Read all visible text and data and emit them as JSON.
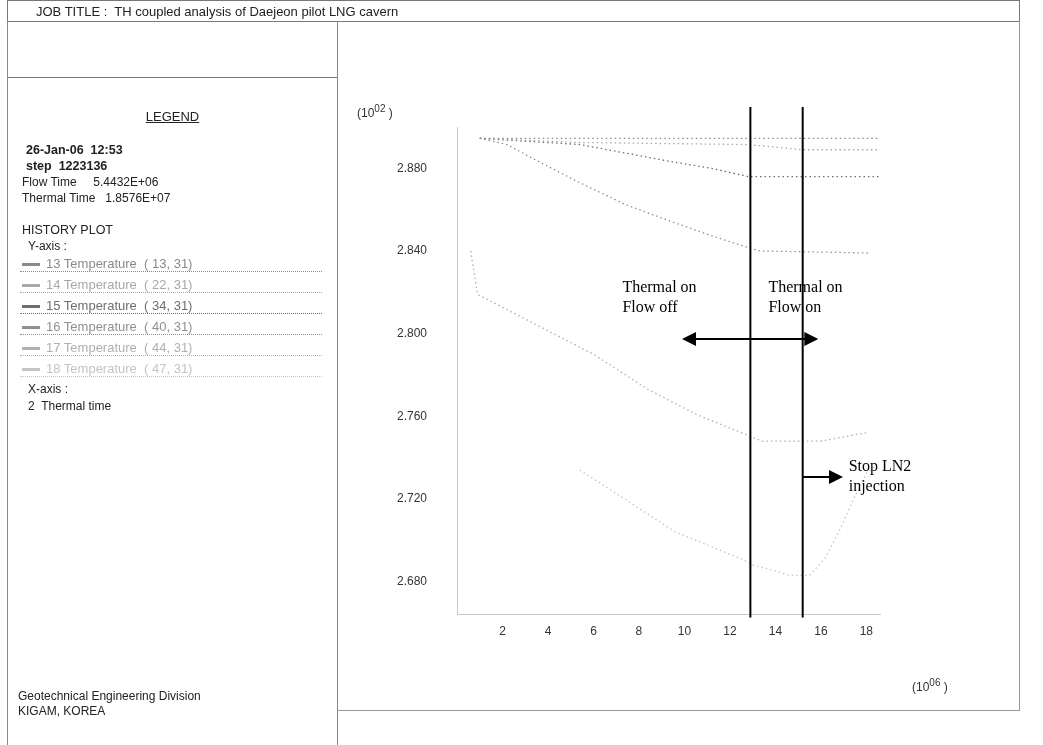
{
  "chart_data": {
    "type": "line",
    "title": "JOB TITLE :  TH coupled analysis of Daejeon pilot LNG cavern",
    "subtitle": "HISTORY PLOT",
    "legend_title": "LEGEND",
    "ylabel": "(10$^{02}$ )",
    "xlabel": "(10$^{06}$ )",
    "xlim": [
      0,
      18.6
    ],
    "ylim": [
      2.664,
      2.9
    ],
    "xticks": [
      2,
      4,
      6,
      8,
      10,
      12,
      14,
      16,
      18
    ],
    "yticks": [
      {
        "value": 2.68,
        "label": "2.680"
      },
      {
        "value": 2.72,
        "label": "2.720"
      },
      {
        "value": 2.76,
        "label": "2.760"
      },
      {
        "value": 2.8,
        "label": "2.800"
      },
      {
        "value": 2.84,
        "label": "2.840"
      },
      {
        "value": 2.88,
        "label": "2.880"
      }
    ],
    "grid": false,
    "legend": "left",
    "marker": "none",
    "line_style": "dotted",
    "series": [
      {
        "name": "13 Temperature  ( 13, 31)",
        "color": "#8a8a8a",
        "x": [
          1.0,
          18.6
        ],
        "values": [
          2.8945,
          2.8945
        ]
      },
      {
        "name": "14 Temperature  ( 22, 31)",
        "color": "#a8a8a8",
        "x": [
          1.0,
          5.4,
          12.8,
          15.2,
          18.6
        ],
        "values": [
          2.8945,
          2.8925,
          2.8915,
          2.889,
          2.889
        ]
      },
      {
        "name": "15 Temperature  ( 34, 31)",
        "color": "#6e6e6e",
        "x": [
          1.0,
          5.4,
          7.35,
          9.3,
          11.2,
          12.8,
          18.6
        ],
        "values": [
          2.8945,
          2.8915,
          2.8875,
          2.8835,
          2.88,
          2.876,
          2.876
        ]
      },
      {
        "name": "16 Temperature  ( 40, 31)",
        "color": "#909090",
        "x": [
          1.0,
          2.2,
          3.2,
          3.9,
          5.4,
          7.4,
          9.6,
          11.7,
          13.3,
          18.2
        ],
        "values": [
          2.8945,
          2.8915,
          2.8855,
          2.8815,
          2.873,
          2.8625,
          2.8535,
          2.8455,
          2.84,
          2.839
        ]
      },
      {
        "name": "17 Temperature  ( 44, 31)",
        "color": "#b0b0b0",
        "x": [
          0.6,
          0.9,
          6.0,
          8.4,
          10.5,
          13.4,
          16.0,
          18.0
        ],
        "values": [
          2.84,
          2.819,
          2.79,
          2.773,
          2.761,
          2.748,
          2.748,
          2.752
        ]
      },
      {
        "name": "18 Temperature  ( 47, 31)",
        "color": "#c4c4c4",
        "x": [
          5.4,
          9.6,
          12.6,
          13.0,
          13.9,
          14.6,
          15.5,
          16.2,
          16.9,
          17.4,
          18.0,
          18.45
        ],
        "values": [
          2.734,
          2.704,
          2.6905,
          2.688,
          2.6855,
          2.683,
          2.683,
          2.6915,
          2.7065,
          2.719,
          2.7325,
          2.7365
        ]
      }
    ],
    "ref_lines": [
      {
        "axis": "x",
        "value": 12.9,
        "color": "#000000"
      },
      {
        "axis": "x",
        "value": 15.2,
        "color": "#000000"
      }
    ],
    "annotations": [
      "Thermal on\nFlow off",
      "Thermal on\nFlow on",
      {
        "text": "Stop LN2\ninjection",
        "x": 15.2,
        "y": 2.7305
      },
      "26-Jan-06  12:53",
      "step  1223136",
      "Flow Time     5.4432E+06",
      "Thermal Time   1.8576E+07",
      "Y-axis :",
      "X-axis :",
      "2  Thermal time",
      "Geotechnical Engineering Division",
      "KIGAM, KOREA"
    ]
  }
}
